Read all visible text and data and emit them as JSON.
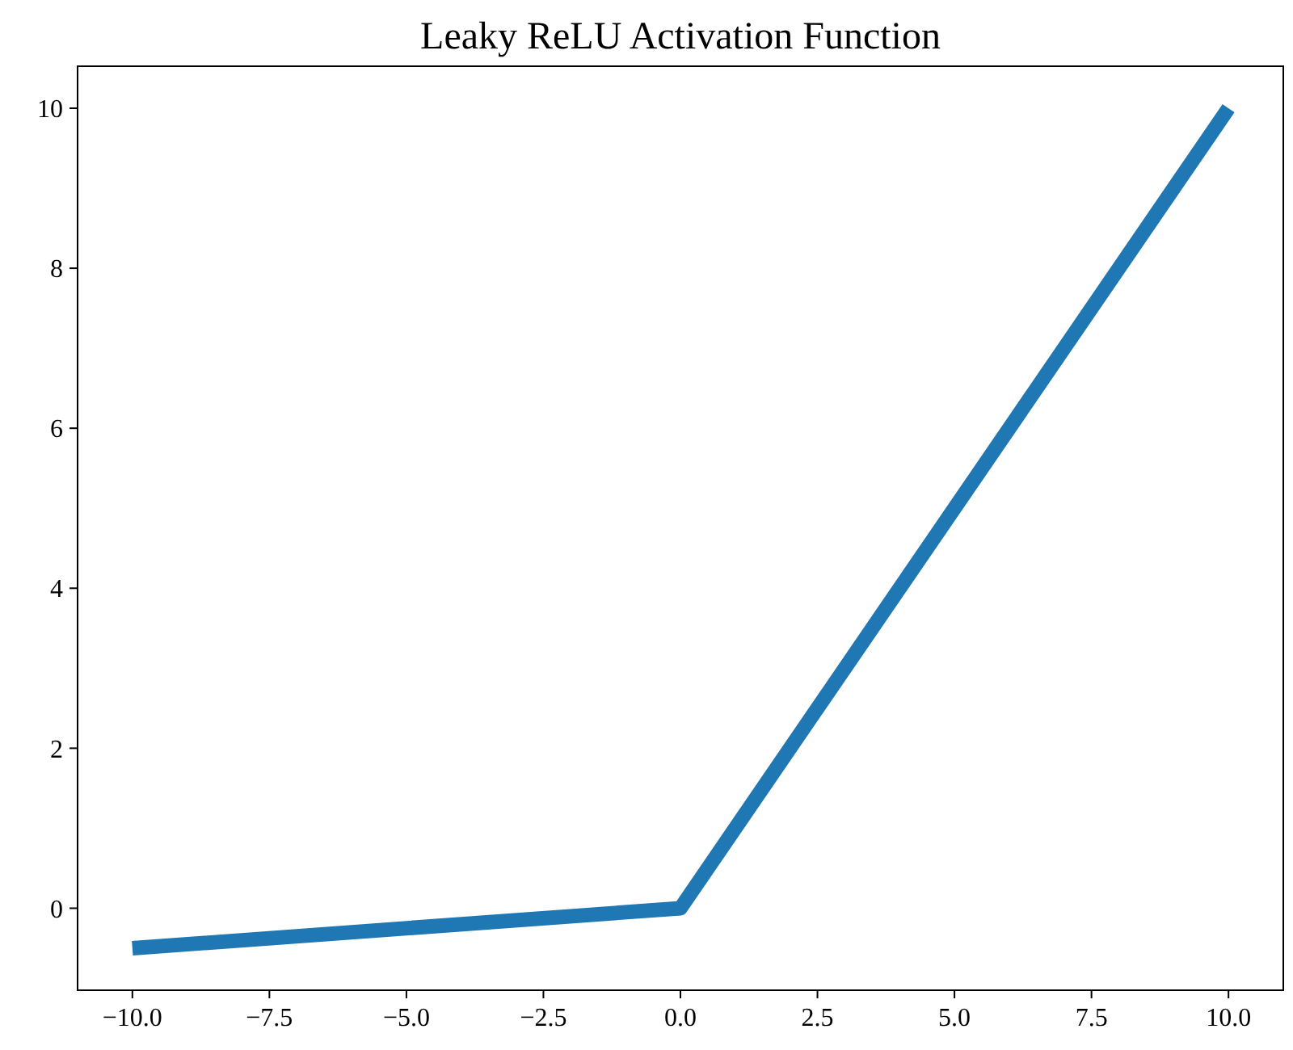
{
  "chart_data": {
    "type": "line",
    "title": "Leaky ReLU Activation Function",
    "x": [
      -10,
      0,
      10
    ],
    "series": [
      {
        "color": "#1f77b4",
        "values": [
          -0.5,
          0,
          10
        ]
      }
    ],
    "xlim": [
      -11,
      11
    ],
    "ylim": [
      -1.025,
      10.525
    ],
    "xticks": [
      {
        "value": -10,
        "label": "−10.0"
      },
      {
        "value": -7.5,
        "label": "−7.5"
      },
      {
        "value": -5,
        "label": "−5.0"
      },
      {
        "value": -2.5,
        "label": "−2.5"
      },
      {
        "value": 0,
        "label": "0.0"
      },
      {
        "value": 2.5,
        "label": "2.5"
      },
      {
        "value": 5,
        "label": "5.0"
      },
      {
        "value": 7.5,
        "label": "7.5"
      },
      {
        "value": 10,
        "label": "10.0"
      }
    ],
    "yticks": [
      0,
      2,
      4,
      6,
      8,
      10
    ],
    "grid": false
  }
}
